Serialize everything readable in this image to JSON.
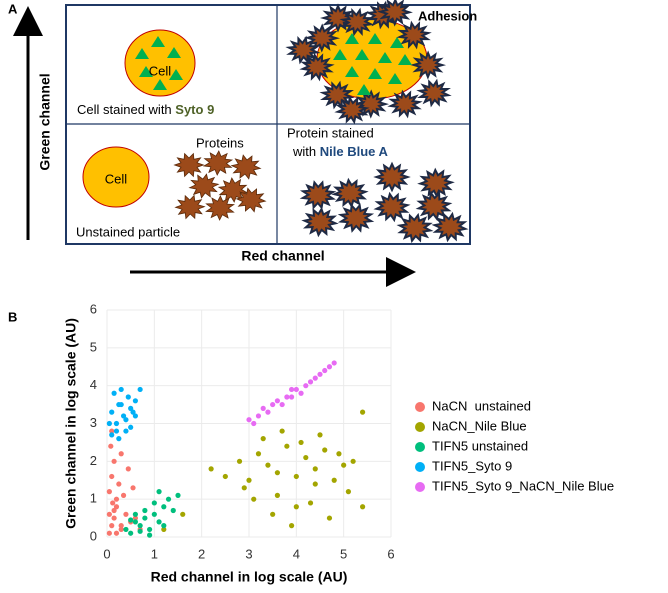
{
  "panel_labels": [
    "A",
    "B"
  ],
  "diagram": {
    "y_axis_label": "Green channel",
    "x_axis_label": "Red channel",
    "top_left": {
      "cell": "Cell",
      "caption": "Cell stained with ",
      "caption_bold": "Syto 9"
    },
    "top_right": {
      "label": "Adhesion"
    },
    "bottom_left": {
      "cell": "Cell",
      "proteins": "Proteins",
      "caption": "Unstained particle"
    },
    "bottom_right": {
      "caption_line1": "Protein stained",
      "caption_line2": "with ",
      "caption_bold": "Nile Blue A"
    }
  },
  "chart_data": {
    "type": "scatter",
    "xlabel": "Red channel in log scale (AU)",
    "ylabel": "Green channel in log scale (AU)",
    "xlim": [
      0,
      6
    ],
    "ylim": [
      0,
      6
    ],
    "xticks": [
      0,
      1,
      2,
      3,
      4,
      5,
      6
    ],
    "yticks": [
      0,
      1,
      2,
      3,
      4,
      5,
      6
    ],
    "grid": true,
    "legend": "right",
    "series": [
      {
        "name": "NaCN  unstained",
        "color": "#f8766d",
        "x": [
          0.05,
          0.1,
          0.15,
          0.2,
          0.3,
          0.05,
          0.1,
          0.2,
          0.4,
          0.5,
          0.15,
          0.25,
          0.35,
          0.08,
          0.12,
          0.3,
          0.45,
          0.6,
          0.2,
          0.1,
          0.05,
          0.3,
          0.55,
          0.7,
          0.15
        ],
        "values": [
          0.1,
          0.3,
          0.5,
          0.8,
          0.2,
          1.2,
          1.6,
          1.0,
          0.6,
          0.4,
          2.0,
          1.4,
          1.1,
          2.4,
          0.9,
          0.3,
          1.8,
          0.5,
          0.1,
          2.8,
          0.6,
          2.2,
          1.3,
          0.2,
          0.7
        ]
      },
      {
        "name": "NaCN_Nile Blue",
        "color": "#a3a500",
        "x": [
          2.2,
          2.5,
          2.8,
          3.0,
          3.2,
          3.4,
          3.6,
          3.8,
          4.0,
          4.2,
          4.4,
          4.6,
          4.8,
          5.0,
          5.2,
          5.4,
          3.1,
          3.5,
          3.9,
          4.3,
          4.7,
          5.1,
          3.3,
          3.7,
          4.1,
          4.5,
          4.9,
          5.4,
          2.9,
          3.6,
          4.0,
          4.4,
          1.6,
          1.2
        ],
        "values": [
          1.8,
          1.6,
          2.0,
          1.5,
          2.2,
          1.9,
          1.7,
          2.4,
          1.6,
          2.1,
          1.8,
          2.3,
          1.5,
          1.9,
          2.0,
          3.3,
          1.0,
          0.6,
          0.3,
          0.9,
          0.5,
          1.2,
          2.6,
          2.8,
          2.5,
          2.7,
          2.2,
          0.8,
          1.3,
          1.1,
          0.8,
          1.4,
          0.6,
          0.2
        ]
      },
      {
        "name": "TIFN5 unstained",
        "color": "#00bf7d",
        "x": [
          0.4,
          0.6,
          0.8,
          1.0,
          1.2,
          0.5,
          0.7,
          0.9,
          1.1,
          1.3,
          1.5,
          0.6,
          0.8,
          1.0,
          0.9,
          1.2,
          0.7,
          1.4,
          0.5,
          1.1
        ],
        "values": [
          0.2,
          0.4,
          0.5,
          0.6,
          0.8,
          0.1,
          0.3,
          0.2,
          0.4,
          1.0,
          1.1,
          0.6,
          0.7,
          0.9,
          0.05,
          0.3,
          0.15,
          0.7,
          0.45,
          1.2
        ]
      },
      {
        "name": "TIFN5_Syto 9",
        "color": "#00b0f6",
        "x": [
          0.05,
          0.1,
          0.2,
          0.3,
          0.4,
          0.5,
          0.6,
          0.15,
          0.25,
          0.35,
          0.45,
          0.55,
          0.1,
          0.2,
          0.3,
          0.4,
          0.6,
          0.7,
          0.25,
          0.5
        ],
        "values": [
          3.0,
          3.3,
          2.8,
          3.5,
          3.1,
          2.9,
          3.6,
          3.8,
          2.6,
          3.2,
          3.7,
          3.3,
          2.7,
          3.0,
          3.9,
          2.8,
          3.2,
          3.9,
          3.5,
          3.4
        ]
      },
      {
        "name": "TIFN5_Syto 9_NaCN_Nile Blue",
        "color": "#e76bf3",
        "x": [
          3.0,
          3.2,
          3.3,
          3.5,
          3.6,
          3.8,
          3.9,
          4.0,
          4.2,
          4.3,
          4.5,
          4.6,
          4.8,
          3.4,
          3.7,
          4.1,
          4.4,
          3.1,
          3.9,
          4.7
        ],
        "values": [
          3.1,
          3.2,
          3.4,
          3.5,
          3.6,
          3.7,
          3.9,
          3.9,
          4.0,
          4.1,
          4.3,
          4.4,
          4.6,
          3.3,
          3.5,
          3.8,
          4.2,
          3.0,
          3.7,
          4.5
        ]
      }
    ]
  }
}
